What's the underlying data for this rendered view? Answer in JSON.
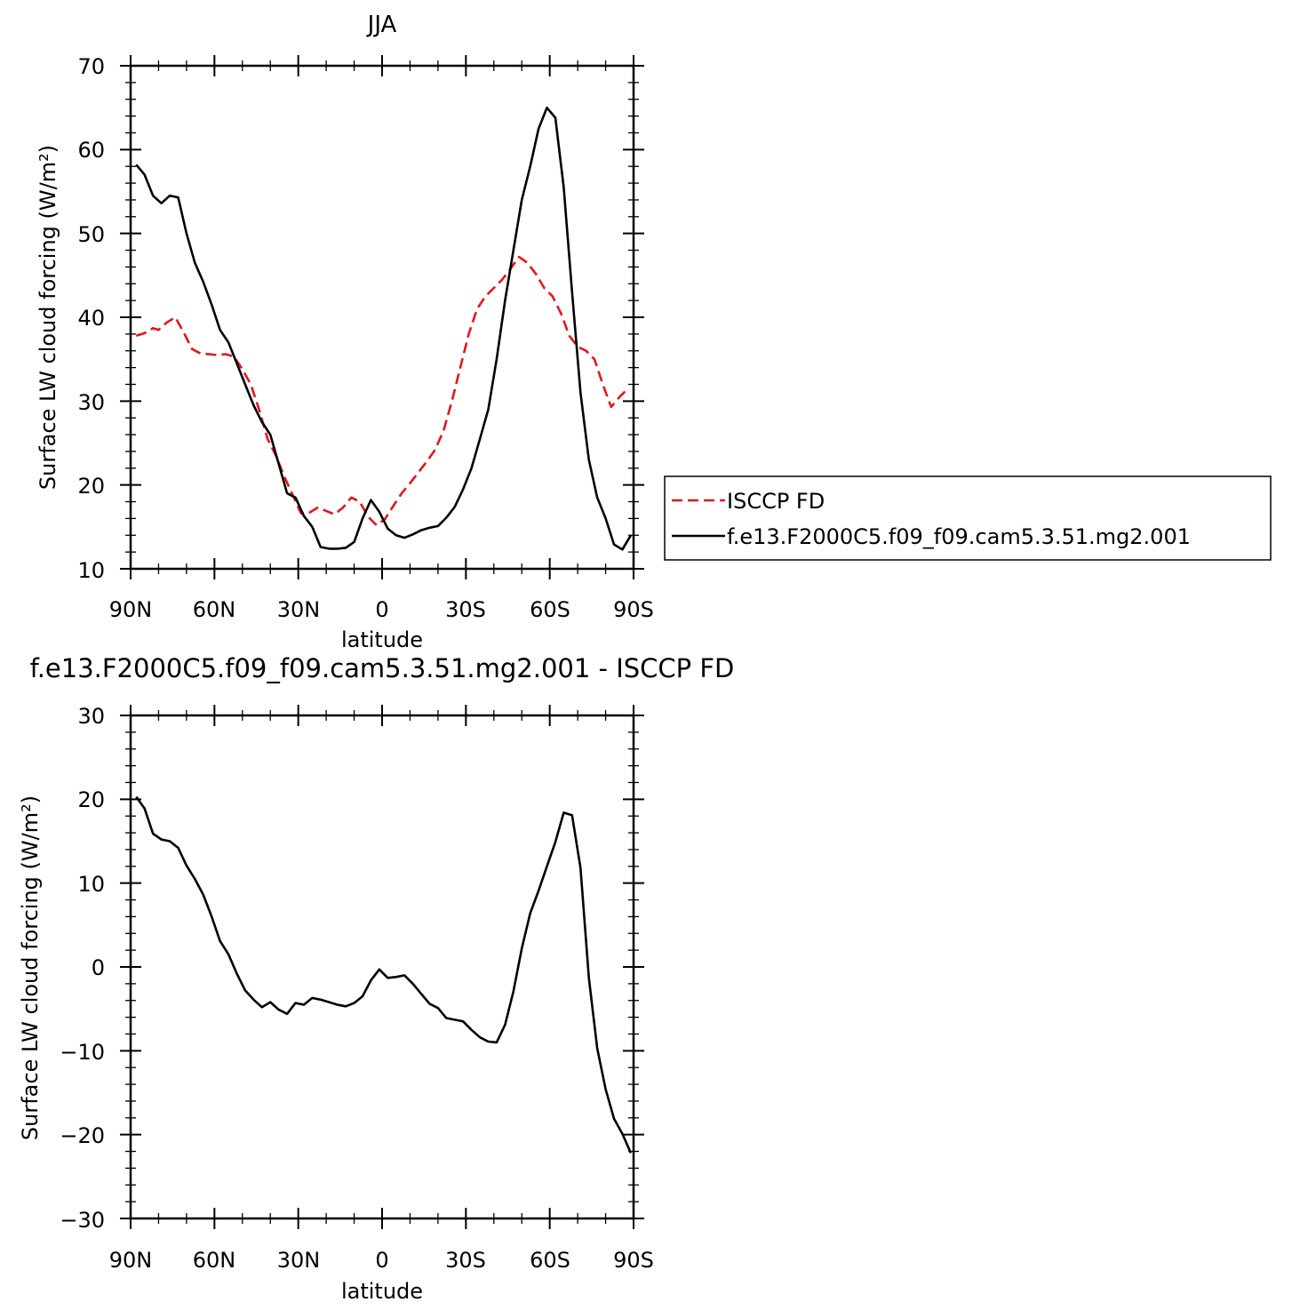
{
  "chart_data": [
    {
      "type": "line",
      "title": "JJA",
      "xlabel": "latitude",
      "ylabel": "Surface LW cloud forcing (W/m²)",
      "xlim": [
        -90,
        90
      ],
      "ylim": [
        10,
        70
      ],
      "x_ticks": [
        -90,
        -60,
        -30,
        0,
        30,
        60,
        90
      ],
      "x_tick_labels": [
        "90N",
        "60N",
        "30N",
        "0",
        "30S",
        "60S",
        "90S"
      ],
      "y_ticks": [
        10,
        20,
        30,
        40,
        50,
        60,
        70
      ],
      "y_tick_labels": [
        "10",
        "20",
        "30",
        "40",
        "50",
        "60",
        "70"
      ],
      "legend_position": "right",
      "series": [
        {
          "name": "ISCCP FD",
          "color": "#e8141c",
          "dash": "dashed",
          "x": [
            -88,
            -85,
            -82,
            -80,
            -77,
            -74,
            -71,
            -68,
            -65,
            -62,
            -59,
            -56,
            -53,
            -50,
            -47,
            -44,
            -41,
            -38,
            -35,
            -32,
            -29,
            -26,
            -23,
            -20,
            -17,
            -14,
            -11,
            -8,
            -5,
            -2,
            1,
            4,
            7,
            10,
            13,
            16,
            19,
            22,
            25,
            28,
            31,
            34,
            37,
            40,
            43,
            46,
            49,
            52,
            55,
            58,
            61,
            64,
            67,
            70,
            73,
            76,
            79,
            82,
            85,
            88
          ],
          "y": [
            37.8,
            38.1,
            38.7,
            38.5,
            39.4,
            40.0,
            38.2,
            36.2,
            35.7,
            35.6,
            35.5,
            35.6,
            35.3,
            33.8,
            32.0,
            29.0,
            25.5,
            23.5,
            21.0,
            18.8,
            16.6,
            16.7,
            17.3,
            16.9,
            16.5,
            17.3,
            18.5,
            18.0,
            16.2,
            15.2,
            15.9,
            17.5,
            19.0,
            20.2,
            21.5,
            22.8,
            24.2,
            26.5,
            30.0,
            34.0,
            38.0,
            41.0,
            42.5,
            43.5,
            44.5,
            45.8,
            47.2,
            46.5,
            45.2,
            43.5,
            42.5,
            40.5,
            37.8,
            36.5,
            36.0,
            35.0,
            32.0,
            29.3,
            30.5,
            31.5
          ]
        },
        {
          "name": "f.e13.F2000C5.f09_f09.cam5.3.51.mg2.001",
          "color": "#000000",
          "dash": "solid",
          "x": [
            -88,
            -85,
            -82,
            -79,
            -76,
            -73,
            -70,
            -67,
            -64,
            -61,
            -58,
            -55,
            -52,
            -49,
            -46,
            -43,
            -40,
            -37,
            -34,
            -31,
            -28,
            -25,
            -22,
            -19,
            -16,
            -13,
            -10,
            -7,
            -4,
            -1,
            2,
            5,
            8,
            11,
            14,
            17,
            20,
            23,
            26,
            29,
            32,
            35,
            38,
            41,
            44,
            47,
            50,
            53,
            56,
            59,
            62,
            65,
            68,
            71,
            74,
            77,
            80,
            83,
            86,
            89
          ],
          "y": [
            58.2,
            57.0,
            54.5,
            53.6,
            54.5,
            54.3,
            50.0,
            46.5,
            44.2,
            41.5,
            38.5,
            37.0,
            34.5,
            32.0,
            29.5,
            27.5,
            26.0,
            22.5,
            19.0,
            18.5,
            16.3,
            15.0,
            12.6,
            12.4,
            12.4,
            12.5,
            13.2,
            16.0,
            18.2,
            16.8,
            14.8,
            14.0,
            13.7,
            14.1,
            14.6,
            14.9,
            15.1,
            16.1,
            17.4,
            19.5,
            22.0,
            25.5,
            29.0,
            35.0,
            42.0,
            48.0,
            54.0,
            58.0,
            62.5,
            65.0,
            63.8,
            55.5,
            43.0,
            31.0,
            23.0,
            18.5,
            16.0,
            12.9,
            12.3,
            14.0
          ]
        }
      ]
    },
    {
      "type": "line",
      "title": "f.e13.F2000C5.f09_f09.cam5.3.51.mg2.001 - ISCCP FD",
      "xlabel": "latitude",
      "ylabel": "Surface LW cloud forcing (W/m²)",
      "xlim": [
        -90,
        90
      ],
      "ylim": [
        -30,
        30
      ],
      "x_ticks": [
        -90,
        -60,
        -30,
        0,
        30,
        60,
        90
      ],
      "x_tick_labels": [
        "90N",
        "60N",
        "30N",
        "0",
        "30S",
        "60S",
        "90S"
      ],
      "y_ticks": [
        -30,
        -20,
        -10,
        0,
        10,
        20,
        30
      ],
      "y_tick_labels": [
        "−30",
        "−20",
        "−10",
        "0",
        "10",
        "20",
        "30"
      ],
      "series": [
        {
          "color": "#000000",
          "dash": "solid",
          "x": [
            -88,
            -85,
            -82,
            -79,
            -76,
            -73,
            -70,
            -67,
            -64,
            -61,
            -58,
            -55,
            -52,
            -49,
            -46,
            -43,
            -40,
            -37,
            -34,
            -31,
            -28,
            -25,
            -22,
            -19,
            -16,
            -13,
            -10,
            -7,
            -4,
            -1,
            2,
            5,
            8,
            11,
            14,
            17,
            20,
            23,
            26,
            29,
            32,
            35,
            38,
            41,
            44,
            47,
            50,
            53,
            56,
            59,
            62,
            65,
            68,
            71,
            74,
            77,
            80,
            83,
            86,
            89
          ],
          "y": [
            20.3,
            18.9,
            15.9,
            15.2,
            15.0,
            14.2,
            12.1,
            10.5,
            8.6,
            6.0,
            3.1,
            1.5,
            -0.8,
            -2.8,
            -3.9,
            -4.8,
            -4.2,
            -5.1,
            -5.6,
            -4.3,
            -4.5,
            -3.7,
            -3.9,
            -4.2,
            -4.5,
            -4.7,
            -4.3,
            -3.5,
            -1.6,
            -0.3,
            -1.3,
            -1.2,
            -1.0,
            -2.0,
            -3.2,
            -4.4,
            -4.9,
            -6.1,
            -6.3,
            -6.5,
            -7.5,
            -8.4,
            -8.9,
            -9.0,
            -6.9,
            -2.9,
            2.2,
            6.4,
            9.1,
            12.0,
            14.9,
            18.4,
            18.1,
            11.8,
            -1.3,
            -9.7,
            -14.6,
            -18.1,
            -19.9,
            -22.2
          ]
        }
      ]
    }
  ]
}
